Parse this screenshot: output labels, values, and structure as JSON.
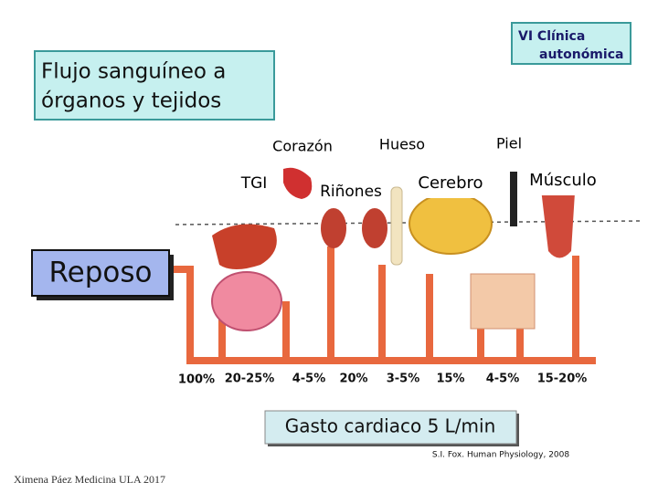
{
  "badge": {
    "line1": "VI Clínica",
    "line2": "autonómica"
  },
  "title": {
    "line1": "Flujo sanguíneo a",
    "line2": "órganos y tejidos"
  },
  "organs": [
    {
      "label": "Corazón"
    },
    {
      "label": "Hueso"
    },
    {
      "label": "Piel"
    },
    {
      "label": "TGI"
    },
    {
      "label": "Riñones"
    },
    {
      "label": "Cerebro"
    },
    {
      "label": "Músculo"
    }
  ],
  "state": "Reposo",
  "percentages": [
    "100%",
    "20-25%",
    "4-5%",
    "20%",
    "3-5%",
    "15%",
    "4-5%",
    "15-20%"
  ],
  "cardiac_output": "Gasto cardiaco 5 L/min",
  "citation": "S.I. Fox. Human Physiology, 2008",
  "author": "Ximena Páez Medicina ULA 2017"
}
